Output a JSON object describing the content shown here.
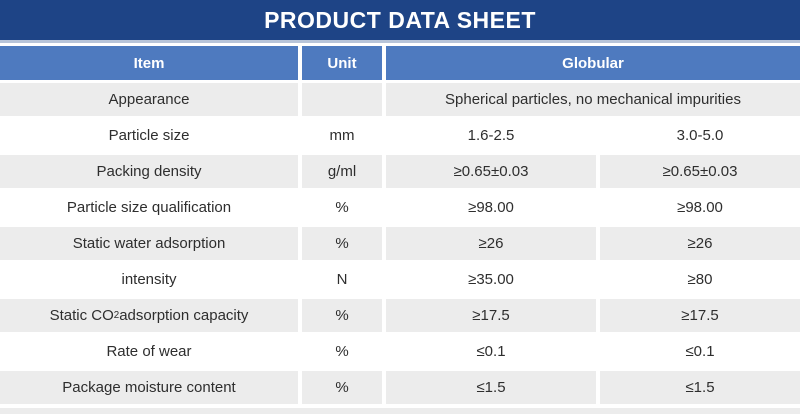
{
  "title": "PRODUCT DATA SHEET",
  "colors": {
    "title_bg": "#1e4486",
    "title_underline": "#b7c4d9",
    "header_bg": "#4e7abf",
    "header_text": "#ffffff",
    "row_alt_bg": "#ececec",
    "row_bg": "#ffffff",
    "body_text": "#2e2e2e"
  },
  "table": {
    "headers": [
      "Item",
      "Unit",
      "Globular"
    ],
    "rows": [
      {
        "item": "Appearance",
        "unit": "",
        "values": [
          "Spherical particles, no mechanical impurities"
        ],
        "span": true,
        "shaded": true
      },
      {
        "item": "Particle size",
        "unit": "mm",
        "values": [
          "1.6-2.5",
          "3.0-5.0"
        ],
        "span": false,
        "shaded": false
      },
      {
        "item": "Packing density",
        "unit": "g/ml",
        "values": [
          "≥0.65±0.03",
          "≥0.65±0.03"
        ],
        "span": false,
        "shaded": true
      },
      {
        "item": "Particle size qualification",
        "unit": "%",
        "values": [
          "≥98.00",
          "≥98.00"
        ],
        "span": false,
        "shaded": false
      },
      {
        "item": "Static water adsorption",
        "unit": "%",
        "values": [
          "≥26",
          "≥26"
        ],
        "span": false,
        "shaded": true
      },
      {
        "item": "intensity",
        "unit": "N",
        "values": [
          "≥35.00",
          "≥80"
        ],
        "span": false,
        "shaded": false
      },
      {
        "item_parts": [
          {
            "t": "Static CO"
          },
          {
            "t": "2",
            "sub": true
          },
          {
            "t": " adsorption capacity"
          }
        ],
        "unit": "%",
        "values": [
          "≥17.5",
          "≥17.5"
        ],
        "span": false,
        "shaded": true
      },
      {
        "item": "Rate of wear",
        "unit": "%",
        "values": [
          "≤0.1",
          "≤0.1"
        ],
        "span": false,
        "shaded": false
      },
      {
        "item": "Package moisture content",
        "unit": "%",
        "values": [
          "≤1.5",
          "≤1.5"
        ],
        "span": false,
        "shaded": true
      }
    ]
  }
}
